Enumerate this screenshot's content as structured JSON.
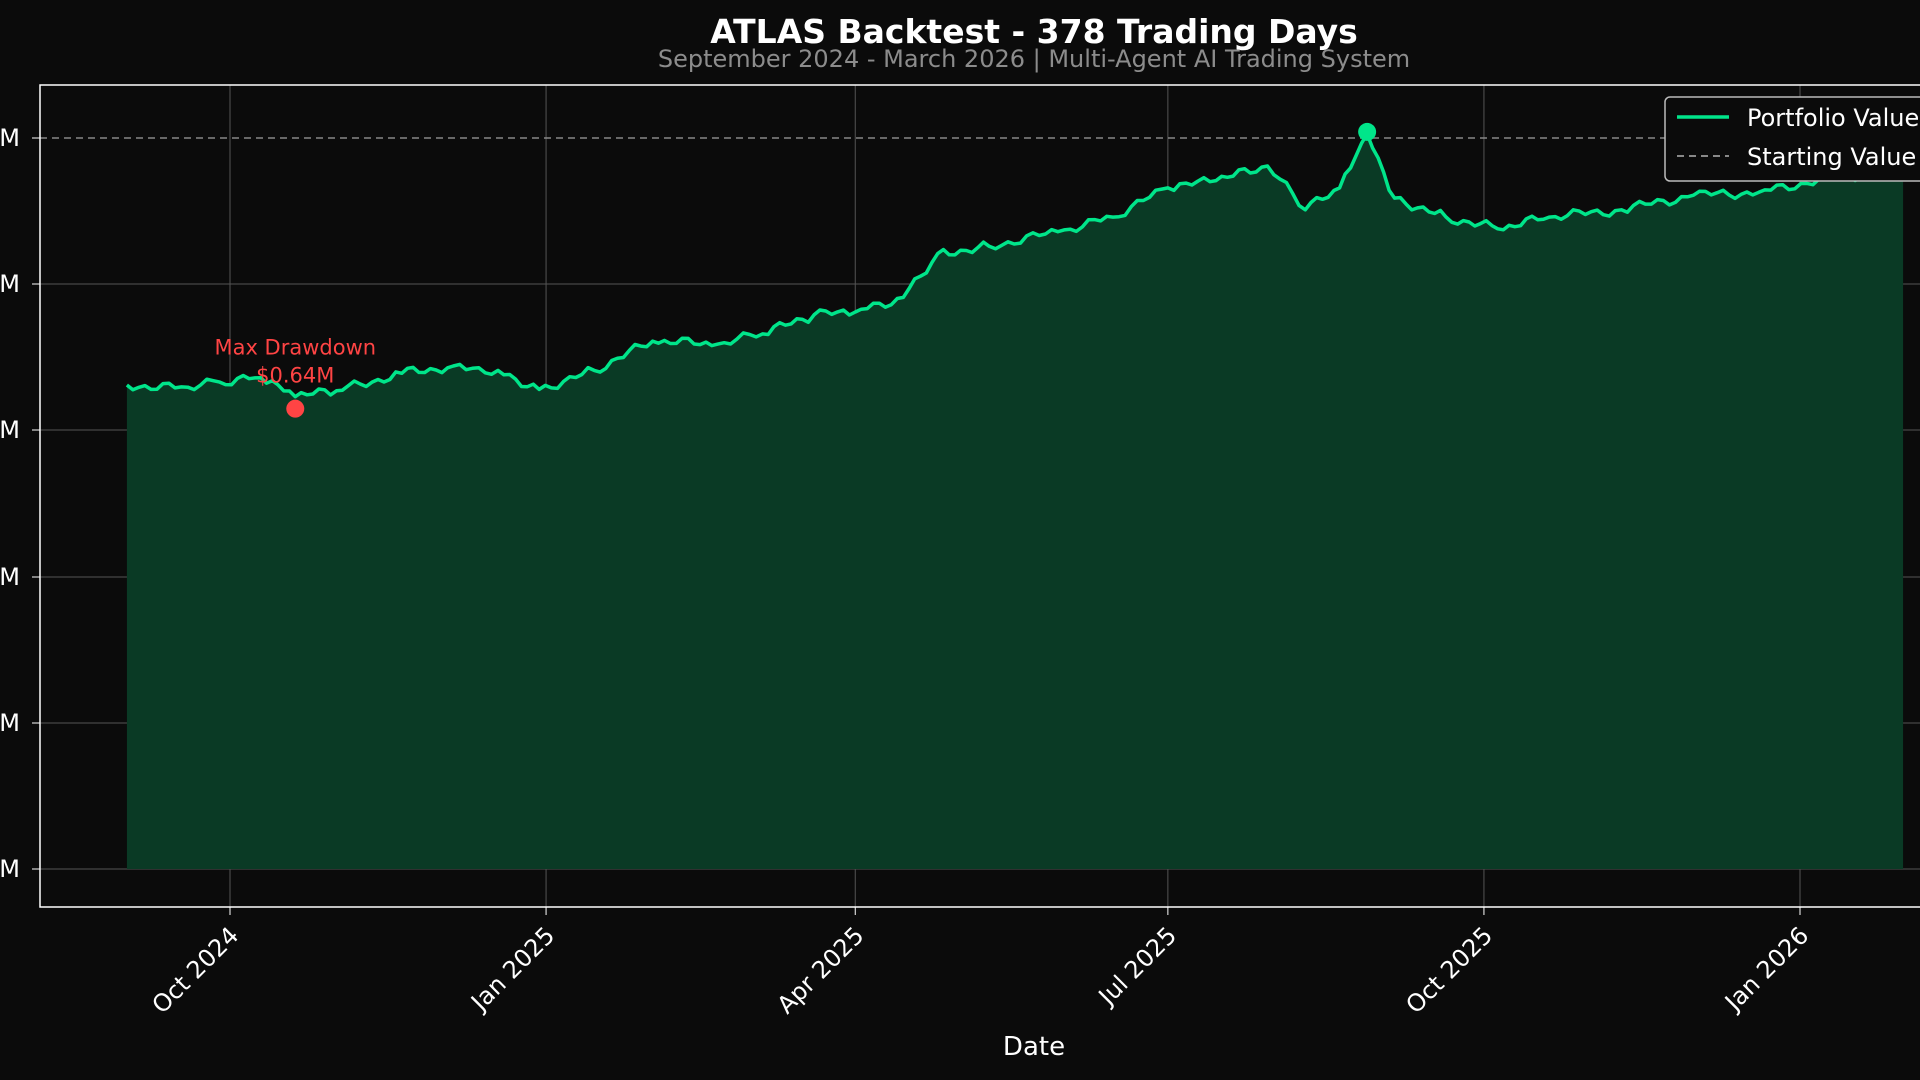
{
  "colors": {
    "background": "#0b0b0b",
    "line": "#00e58a",
    "fill": "#0a3a25",
    "drawdown": "#ff4444",
    "start_line": "#888888",
    "grid": "#555555",
    "frame": "#ffffff",
    "text": "#ffffff",
    "subtitle": "#8c8c8c"
  },
  "chart_data": {
    "type": "area",
    "title": "ATLAS Backtest - 378 Trading Days",
    "subtitle": "September 2024 - March 2026 | Multi-Agent AI Trading System",
    "xlabel": "Date",
    "ylabel": "",
    "x_ticks": [
      "Oct 2024",
      "Jan 2025",
      "Apr 2025",
      "Jul 2025",
      "Oct 2025",
      "Jan 2026"
    ],
    "y_tick_labels": [
      "M",
      "M",
      "M",
      "M",
      "M",
      "M"
    ],
    "grid": true,
    "legend": {
      "position": "top-right",
      "entries": [
        "Portfolio Value",
        "Starting Value"
      ]
    },
    "annotations": [
      {
        "label": "Max Drawdown\n$0.64M",
        "date": "2024-10-20"
      }
    ],
    "series": [
      {
        "name": "Portfolio Value",
        "x": [
          "2024-09-01",
          "2024-09-15",
          "2024-09-28",
          "2024-10-10",
          "2024-10-20",
          "2024-11-01",
          "2024-11-20",
          "2024-12-05",
          "2024-12-18",
          "2024-12-30",
          "2025-01-15",
          "2025-02-01",
          "2025-02-20",
          "2025-03-05",
          "2025-03-20",
          "2025-04-01",
          "2025-04-15",
          "2025-04-25",
          "2025-05-10",
          "2025-05-30",
          "2025-06-15",
          "2025-07-01",
          "2025-07-15",
          "2025-07-30",
          "2025-08-10",
          "2025-08-20",
          "2025-08-28",
          "2025-09-05",
          "2025-09-20",
          "2025-10-05",
          "2025-10-20",
          "2025-11-10",
          "2025-12-01",
          "2025-12-20",
          "2026-01-10",
          "2026-01-31"
        ],
        "values_rel": [
          0.0,
          -0.02,
          0.02,
          0.05,
          -0.08,
          -0.04,
          0.08,
          0.13,
          0.1,
          -0.03,
          0.1,
          0.3,
          0.28,
          0.35,
          0.48,
          0.5,
          0.6,
          0.9,
          0.95,
          1.05,
          1.15,
          1.35,
          1.4,
          1.5,
          1.2,
          1.35,
          1.72,
          1.28,
          1.15,
          1.07,
          1.15,
          1.2,
          1.3,
          1.32,
          1.42,
          1.45
        ]
      },
      {
        "name": "Starting Value",
        "style": "dashed"
      }
    ]
  }
}
